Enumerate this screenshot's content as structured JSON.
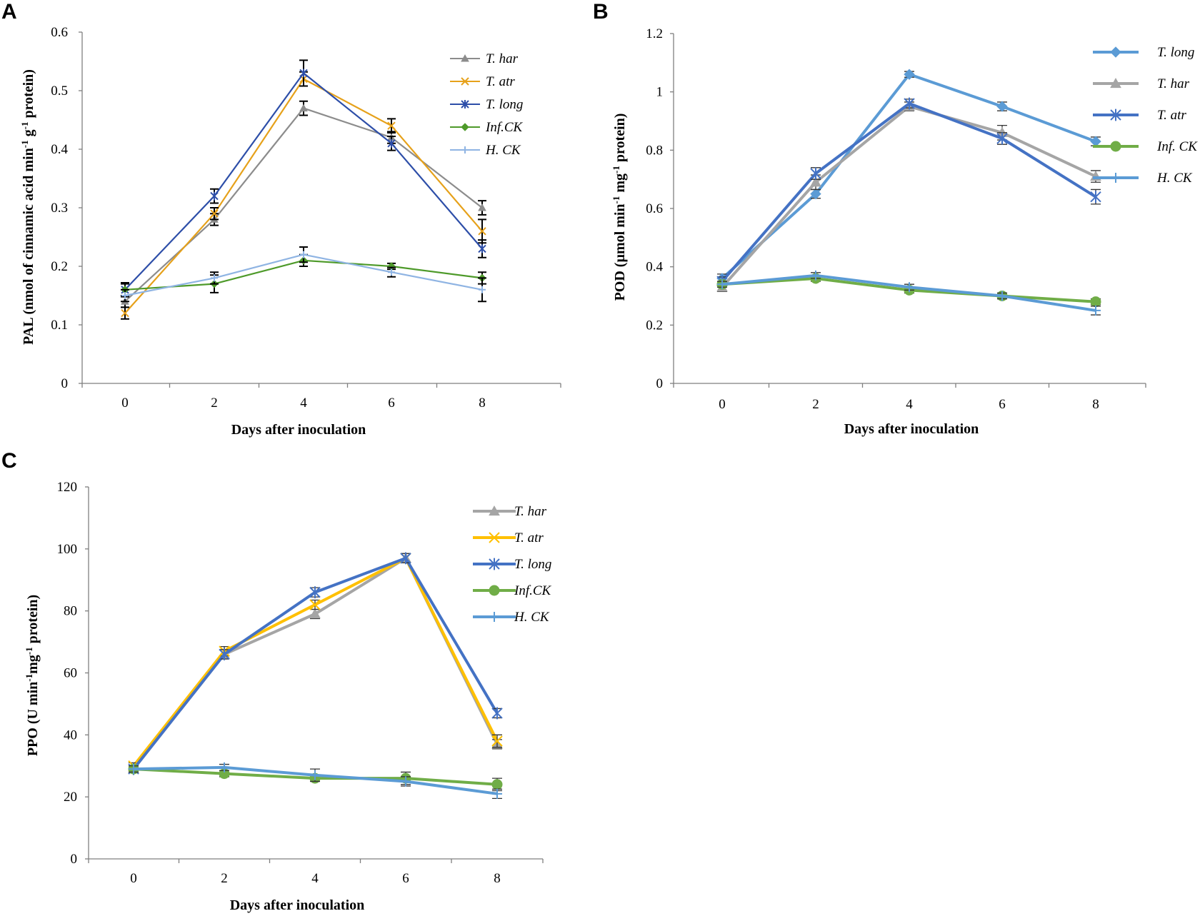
{
  "figure_panels": [
    "A",
    "B",
    "C"
  ],
  "chart_data": [
    {
      "panel": "A",
      "type": "line",
      "title": "",
      "xlabel": "Days after inoculation",
      "ylabel": "PAL (nmol of cinnamic acid min-1 g-1 protein)",
      "ylabel_parts": {
        "pre": "PAL (nmol of cinnamic acid min",
        "sup1": "-1",
        "mid": " g",
        "sup2": "-1",
        "post": " protein)"
      },
      "x": [
        0,
        2,
        4,
        6,
        8
      ],
      "ylim": [
        0,
        0.6
      ],
      "yticks": [
        0,
        0.1,
        0.2,
        0.3,
        0.4,
        0.5,
        0.6
      ],
      "ytick_labels": [
        "0",
        "0.1",
        "0.2",
        "0.3",
        "0.4",
        "0.5",
        "0.6"
      ],
      "xtick_labels": [
        "0",
        "2",
        "4",
        "6",
        "8"
      ],
      "grid": false,
      "legend_position": "top-right",
      "series": [
        {
          "name": "T. har",
          "color": "#8c8c8c",
          "marker": "triangle",
          "values": [
            0.14,
            0.28,
            0.47,
            0.42,
            0.3
          ],
          "errors": [
            0.01,
            0.01,
            0.012,
            0.01,
            0.012
          ]
        },
        {
          "name": "T. atr",
          "color": "#e6a11a",
          "marker": "x",
          "values": [
            0.12,
            0.29,
            0.52,
            0.44,
            0.26
          ],
          "errors": [
            0.01,
            0.01,
            0.012,
            0.012,
            0.02
          ]
        },
        {
          "name": "T. long",
          "color": "#2d4ea8",
          "marker": "star",
          "values": [
            0.16,
            0.32,
            0.53,
            0.41,
            0.23
          ],
          "errors": [
            0.012,
            0.012,
            0.022,
            0.012,
            0.015
          ]
        },
        {
          "name": "Inf.CK",
          "color": "#4e9a2a",
          "marker": "diamond",
          "values": [
            0.16,
            0.17,
            0.21,
            0.2,
            0.18
          ],
          "errors": [
            0.01,
            0.015,
            0.01,
            0.005,
            0.01
          ]
        },
        {
          "name": "H. CK",
          "color": "#8fb4e3",
          "marker": "plus",
          "values": [
            0.15,
            0.18,
            0.22,
            0.19,
            0.16
          ],
          "errors": [
            0.01,
            0.01,
            0.013,
            0.008,
            0.02
          ]
        }
      ]
    },
    {
      "panel": "B",
      "type": "line",
      "title": "",
      "xlabel": "Days after inoculation",
      "ylabel": "POD (µmol min-1 mg-1 protein)",
      "ylabel_parts": {
        "pre": "POD (µmol min",
        "sup1": "-1",
        "mid": " mg",
        "sup2": "-1",
        "post": " protein)"
      },
      "x": [
        0,
        2,
        4,
        6,
        8
      ],
      "ylim": [
        0,
        1.2
      ],
      "yticks": [
        0,
        0.2,
        0.4,
        0.6,
        0.8,
        1.0,
        1.2
      ],
      "ytick_labels": [
        "0",
        "0.2",
        "0.4",
        "0.6",
        "0.8",
        "1",
        "1.2"
      ],
      "xtick_labels": [
        "0",
        "2",
        "4",
        "6",
        "8"
      ],
      "grid": false,
      "legend_position": "top-right",
      "series": [
        {
          "name": "T. long",
          "color": "#5b9bd5",
          "marker": "diamond",
          "values": [
            0.36,
            0.65,
            1.06,
            0.95,
            0.83
          ],
          "errors": [
            0.015,
            0.015,
            0.01,
            0.015,
            0.015
          ]
        },
        {
          "name": "T. har",
          "color": "#a5a5a5",
          "marker": "triangle",
          "values": [
            0.33,
            0.69,
            0.95,
            0.86,
            0.71
          ],
          "errors": [
            0.015,
            0.025,
            0.015,
            0.025,
            0.02
          ]
        },
        {
          "name": "T. atr",
          "color": "#4472c4",
          "marker": "star",
          "values": [
            0.35,
            0.72,
            0.96,
            0.84,
            0.64
          ],
          "errors": [
            0.015,
            0.02,
            0.015,
            0.02,
            0.025
          ]
        },
        {
          "name": "Inf. CK",
          "color": "#70ad47",
          "marker": "circle",
          "values": [
            0.34,
            0.36,
            0.32,
            0.3,
            0.28
          ],
          "errors": [
            0.01,
            0.01,
            0.01,
            0.01,
            0.01
          ]
        },
        {
          "name": "H. CK",
          "color": "#5b9bd5",
          "marker": "plus",
          "values": [
            0.34,
            0.37,
            0.33,
            0.3,
            0.25
          ],
          "errors": [
            0.01,
            0.01,
            0.01,
            0.01,
            0.015
          ]
        }
      ]
    },
    {
      "panel": "C",
      "type": "line",
      "title": "",
      "xlabel": "Days after inoculation",
      "ylabel": "PPO (U min-1mg-1 protein)",
      "ylabel_parts": {
        "pre": "PPO (U min",
        "sup1": "-1",
        "mid": "mg",
        "sup2": "-1",
        "post": " protein)"
      },
      "x": [
        0,
        2,
        4,
        6,
        8
      ],
      "ylim": [
        0,
        120
      ],
      "yticks": [
        0,
        20,
        40,
        60,
        80,
        100,
        120
      ],
      "ytick_labels": [
        "0",
        "20",
        "40",
        "60",
        "80",
        "100",
        "120"
      ],
      "xtick_labels": [
        "0",
        "2",
        "4",
        "6",
        "8"
      ],
      "grid": false,
      "legend_position": "top-right",
      "series": [
        {
          "name": "T. har",
          "color": "#a5a5a5",
          "marker": "triangle",
          "values": [
            29,
            66,
            79,
            97,
            37
          ],
          "errors": [
            1,
            1.5,
            1.5,
            1.5,
            1.5
          ]
        },
        {
          "name": "T. atr",
          "color": "#ffc000",
          "marker": "x",
          "values": [
            30,
            67,
            82,
            97,
            38
          ],
          "errors": [
            1,
            1.5,
            1.5,
            1.5,
            2
          ]
        },
        {
          "name": "T. long",
          "color": "#4472c4",
          "marker": "star",
          "values": [
            29,
            66,
            86,
            97,
            47
          ],
          "errors": [
            1,
            1.5,
            1.5,
            1.5,
            1.5
          ]
        },
        {
          "name": "Inf.CK",
          "color": "#70ad47",
          "marker": "circle",
          "values": [
            29,
            27.5,
            26,
            26,
            24
          ],
          "errors": [
            1,
            1,
            1,
            2,
            2
          ]
        },
        {
          "name": "H. CK",
          "color": "#5b9bd5",
          "marker": "plus",
          "values": [
            29,
            29.5,
            27,
            25,
            21
          ],
          "errors": [
            1,
            1,
            2,
            1.5,
            1.5
          ]
        }
      ]
    }
  ]
}
